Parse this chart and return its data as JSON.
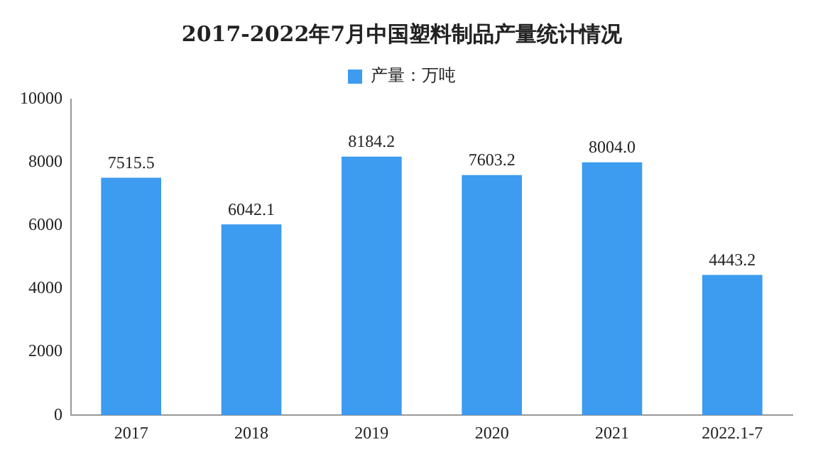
{
  "chart_data": {
    "type": "bar",
    "title": "2017-2022年7月中国塑料制品产量统计情况",
    "categories": [
      "2017",
      "2018",
      "2019",
      "2020",
      "2021",
      "2022.1-7"
    ],
    "series": [
      {
        "name": "产量：万吨",
        "color": "#3d9bf0",
        "values": [
          7515.5,
          6042.1,
          8184.2,
          7603.2,
          8004.0,
          4443.2
        ]
      }
    ],
    "value_labels": [
      "7515.5",
      "6042.1",
      "8184.2",
      "7603.2",
      "8004.0",
      "4443.2"
    ],
    "ylim": [
      0,
      10000
    ],
    "yticks": [
      0,
      2000,
      4000,
      6000,
      8000,
      10000
    ],
    "grid": false,
    "legend": "top"
  }
}
